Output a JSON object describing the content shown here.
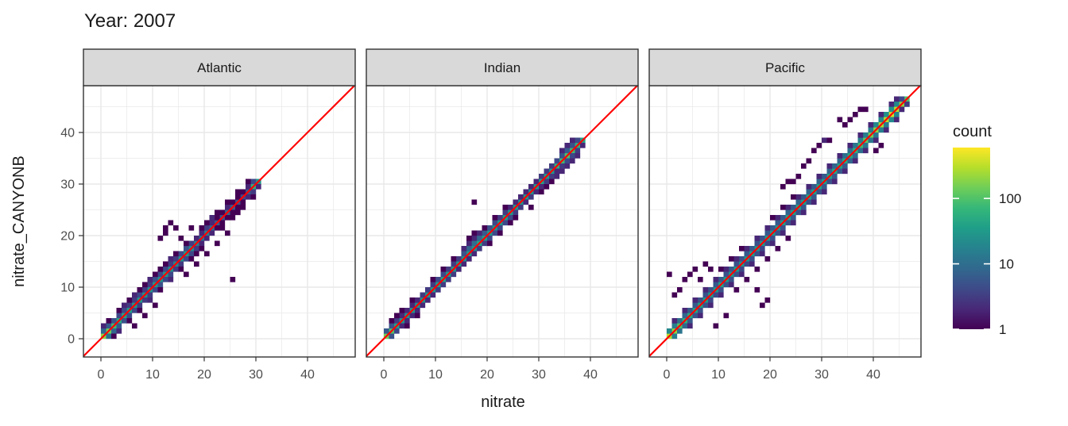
{
  "chart_data": {
    "type": "heatmap",
    "subtype": "faceted-2d-bin-scatter",
    "title": "Year: 2007",
    "xlabel": "nitrate",
    "ylabel": "nitrate_CANYONB",
    "x_ticks": [
      0,
      10,
      20,
      30,
      40
    ],
    "y_ticks": [
      0,
      10,
      20,
      30,
      40
    ],
    "x_minor": [
      5,
      15,
      25,
      35,
      45
    ],
    "y_minor": [
      5,
      15,
      25,
      35,
      45
    ],
    "axis_range": [
      -3.4,
      49.2
    ],
    "bin_size": 1,
    "grid": true,
    "identity_line": {
      "label": "y = x",
      "color": "#ff0000"
    },
    "legend": {
      "title": "count",
      "position": "right",
      "scale": "log10",
      "ticks": [
        100,
        10,
        1
      ],
      "domain_max": 600,
      "colors": [
        "#440154",
        "#482878",
        "#3e4a89",
        "#31688e",
        "#26828e",
        "#1f9e89",
        "#35b779",
        "#6ece58",
        "#b5de2b",
        "#fde725"
      ]
    },
    "style": {
      "strip_fill": "#d9d9d9",
      "strip_border": "#333333",
      "panel_fill": "#ffffff",
      "panel_border": "#333333",
      "grid_color": "#e8e8e8",
      "tick_color": "#333333",
      "tick_label_color": "#4d4d4d",
      "text_color": "#1a1a1a"
    },
    "facets": [
      {
        "label": "Atlantic",
        "core": [
          200,
          150,
          80,
          50,
          40,
          35,
          30,
          30,
          25,
          25,
          30,
          25,
          30,
          25,
          20,
          25,
          30,
          20,
          15,
          10,
          15,
          8,
          6,
          5,
          8,
          6,
          5,
          4,
          6,
          60,
          30
        ],
        "above": [
          8,
          6,
          5,
          4,
          4,
          3,
          3,
          4,
          3,
          3,
          5,
          4,
          4,
          3,
          3,
          4,
          5,
          3,
          2,
          2,
          3,
          2,
          1,
          1,
          2,
          1,
          1,
          1,
          2,
          4
        ],
        "below": [
          10,
          8,
          6,
          5,
          4,
          4,
          3,
          3,
          3,
          4,
          5,
          4,
          4,
          3,
          3,
          4,
          4,
          3,
          2,
          2,
          2,
          1,
          1,
          1,
          1,
          1,
          1,
          2,
          3,
          2
        ],
        "extra": [
          [
            2,
            0,
            1
          ],
          [
            3,
            1,
            2
          ],
          [
            0,
            2,
            2
          ],
          [
            1,
            3,
            1
          ],
          [
            3,
            5,
            1
          ],
          [
            4,
            6,
            2
          ],
          [
            5,
            7,
            1
          ],
          [
            6,
            8,
            2
          ],
          [
            7,
            9,
            1
          ],
          [
            8,
            10,
            1
          ],
          [
            9,
            11,
            2
          ],
          [
            10,
            12,
            1
          ],
          [
            11,
            13,
            1
          ],
          [
            12,
            14,
            1
          ],
          [
            13,
            15,
            2
          ],
          [
            14,
            16,
            1
          ],
          [
            16,
            18,
            1
          ],
          [
            18,
            16,
            1
          ],
          [
            5,
            3,
            1
          ],
          [
            7,
            5,
            1
          ],
          [
            9,
            7,
            2
          ],
          [
            11,
            9,
            1
          ],
          [
            13,
            11,
            2
          ],
          [
            15,
            13,
            1
          ],
          [
            17,
            15,
            1
          ],
          [
            19,
            17,
            1
          ],
          [
            12,
            20,
            1
          ],
          [
            13,
            22,
            1
          ],
          [
            14,
            21,
            1
          ],
          [
            12,
            21,
            1
          ],
          [
            11,
            19,
            1
          ],
          [
            25,
            11,
            1
          ],
          [
            20,
            22,
            1
          ],
          [
            22,
            24,
            1
          ],
          [
            24,
            26,
            1
          ],
          [
            26,
            28,
            1
          ],
          [
            23,
            21,
            1
          ],
          [
            25,
            23,
            1
          ],
          [
            27,
            25,
            1
          ],
          [
            28,
            30,
            1
          ],
          [
            26,
            24,
            1
          ],
          [
            29,
            27,
            1
          ],
          [
            17,
            21,
            1
          ],
          [
            15,
            19,
            1
          ],
          [
            8,
            4,
            1
          ],
          [
            10,
            6,
            1
          ],
          [
            6,
            2,
            1
          ],
          [
            21,
            23,
            2
          ],
          [
            19,
            21,
            1
          ],
          [
            16,
            12,
            1
          ],
          [
            18,
            14,
            1
          ],
          [
            20,
            16,
            1
          ],
          [
            22,
            18,
            1
          ],
          [
            24,
            20,
            1
          ]
        ]
      },
      {
        "label": "Indian",
        "core": [
          150,
          100,
          40,
          30,
          25,
          30,
          25,
          25,
          30,
          30,
          35,
          40,
          35,
          30,
          30,
          25,
          30,
          25,
          40,
          35,
          30,
          25,
          30,
          35,
          30,
          30,
          25,
          30,
          25,
          30,
          40,
          35,
          30,
          60,
          80,
          100,
          80,
          60,
          40
        ],
        "above": [
          6,
          5,
          3,
          2,
          2,
          2,
          2,
          3,
          3,
          3,
          4,
          4,
          3,
          3,
          3,
          5,
          8,
          10,
          8,
          6,
          5,
          4,
          3,
          3,
          2,
          2,
          2,
          2,
          2,
          2,
          3,
          3,
          3,
          4,
          5,
          6,
          5,
          4
        ],
        "below": [
          5,
          4,
          2,
          2,
          2,
          2,
          2,
          2,
          2,
          3,
          3,
          3,
          3,
          2,
          2,
          2,
          2,
          3,
          3,
          4,
          4,
          4,
          4,
          4,
          3,
          3,
          2,
          3,
          2,
          2,
          3,
          3,
          2,
          3,
          4,
          4,
          3,
          2
        ],
        "extra": [
          [
            17,
            26,
            1
          ],
          [
            24,
            22,
            1
          ],
          [
            28,
            25,
            1
          ],
          [
            15,
            17,
            2
          ],
          [
            16,
            18,
            2
          ],
          [
            17,
            19,
            2
          ],
          [
            18,
            20,
            2
          ],
          [
            19,
            21,
            1
          ],
          [
            16,
            19,
            1
          ],
          [
            17,
            20,
            1
          ],
          [
            3,
            5,
            1
          ],
          [
            2,
            4,
            1
          ],
          [
            5,
            7,
            1
          ],
          [
            4,
            2,
            1
          ],
          [
            6,
            4,
            1
          ],
          [
            1,
            3,
            1
          ],
          [
            9,
            11,
            1
          ],
          [
            11,
            13,
            1
          ],
          [
            13,
            15,
            1
          ],
          [
            21,
            23,
            1
          ],
          [
            23,
            25,
            1
          ],
          [
            31,
            29,
            1
          ],
          [
            32,
            30,
            1
          ],
          [
            33,
            31,
            2
          ],
          [
            34,
            32,
            2
          ],
          [
            35,
            33,
            2
          ],
          [
            36,
            34,
            2
          ],
          [
            37,
            35,
            2
          ],
          [
            30,
            28,
            1
          ],
          [
            25,
            23,
            1
          ],
          [
            22,
            20,
            1
          ],
          [
            20,
            18,
            1
          ],
          [
            36,
            38,
            2
          ],
          [
            35,
            37,
            2
          ],
          [
            34,
            36,
            2
          ]
        ]
      },
      {
        "label": "Pacific",
        "core": [
          300,
          200,
          100,
          60,
          50,
          40,
          40,
          35,
          30,
          30,
          40,
          35,
          30,
          35,
          30,
          30,
          35,
          30,
          30,
          35,
          30,
          30,
          35,
          40,
          35,
          40,
          35,
          40,
          35,
          40,
          35,
          40,
          45,
          40,
          50,
          45,
          60,
          80,
          120,
          150,
          200,
          250,
          300,
          400,
          300,
          200,
          100
        ],
        "above": [
          20,
          15,
          10,
          8,
          6,
          6,
          5,
          5,
          5,
          6,
          6,
          5,
          6,
          5,
          5,
          6,
          6,
          5,
          5,
          6,
          6,
          6,
          6,
          8,
          6,
          8,
          6,
          8,
          6,
          8,
          6,
          8,
          8,
          8,
          10,
          10,
          12,
          15,
          15,
          15,
          20,
          20,
          25,
          25,
          20,
          15
        ],
        "below": [
          15,
          12,
          8,
          6,
          5,
          5,
          5,
          4,
          4,
          5,
          5,
          5,
          5,
          4,
          4,
          5,
          5,
          4,
          4,
          5,
          5,
          5,
          5,
          6,
          5,
          6,
          5,
          6,
          5,
          6,
          5,
          6,
          6,
          6,
          8,
          8,
          10,
          12,
          12,
          12,
          15,
          15,
          20,
          20,
          15,
          12
        ],
        "extra": [
          [
            1,
            3,
            2
          ],
          [
            3,
            5,
            2
          ],
          [
            5,
            7,
            2
          ],
          [
            7,
            9,
            2
          ],
          [
            9,
            11,
            2
          ],
          [
            11,
            13,
            2
          ],
          [
            13,
            15,
            2
          ],
          [
            15,
            17,
            2
          ],
          [
            17,
            19,
            2
          ],
          [
            19,
            21,
            2
          ],
          [
            21,
            23,
            2
          ],
          [
            23,
            25,
            2
          ],
          [
            25,
            27,
            2
          ],
          [
            27,
            29,
            2
          ],
          [
            29,
            31,
            2
          ],
          [
            31,
            33,
            2
          ],
          [
            33,
            35,
            2
          ],
          [
            35,
            37,
            2
          ],
          [
            37,
            39,
            2
          ],
          [
            39,
            41,
            2
          ],
          [
            41,
            43,
            2
          ],
          [
            43,
            45,
            2
          ],
          [
            4,
            2,
            2
          ],
          [
            6,
            4,
            2
          ],
          [
            8,
            6,
            2
          ],
          [
            10,
            8,
            2
          ],
          [
            12,
            10,
            2
          ],
          [
            14,
            12,
            2
          ],
          [
            16,
            14,
            2
          ],
          [
            18,
            16,
            2
          ],
          [
            20,
            18,
            2
          ],
          [
            22,
            20,
            2
          ],
          [
            24,
            22,
            2
          ],
          [
            26,
            24,
            2
          ],
          [
            28,
            26,
            2
          ],
          [
            30,
            28,
            2
          ],
          [
            32,
            30,
            2
          ],
          [
            34,
            32,
            2
          ],
          [
            36,
            34,
            2
          ],
          [
            38,
            36,
            2
          ],
          [
            40,
            38,
            2
          ],
          [
            42,
            40,
            2
          ],
          [
            44,
            42,
            2
          ],
          [
            10,
            13,
            1
          ],
          [
            12,
            15,
            1
          ],
          [
            14,
            17,
            1
          ],
          [
            20,
            23,
            1
          ],
          [
            22,
            25,
            1
          ],
          [
            24,
            27,
            1
          ],
          [
            13,
            9,
            1
          ],
          [
            15,
            11,
            1
          ],
          [
            17,
            13,
            1
          ],
          [
            19,
            15,
            1
          ],
          [
            21,
            17,
            1
          ],
          [
            23,
            19,
            1
          ],
          [
            0,
            12,
            1
          ],
          [
            4,
            12,
            1
          ],
          [
            3,
            11,
            1
          ],
          [
            5,
            13,
            1
          ],
          [
            7,
            14,
            1
          ],
          [
            8,
            13,
            1
          ],
          [
            18,
            6,
            1
          ],
          [
            17,
            9,
            1
          ],
          [
            19,
            7,
            1
          ],
          [
            33,
            42,
            1
          ],
          [
            35,
            42,
            1
          ],
          [
            34,
            41,
            1
          ],
          [
            36,
            43,
            1
          ],
          [
            28,
            36,
            1
          ],
          [
            29,
            37,
            1
          ],
          [
            30,
            38,
            2
          ],
          [
            31,
            38,
            1
          ],
          [
            22,
            29,
            1
          ],
          [
            23,
            30,
            1
          ],
          [
            24,
            30,
            1
          ],
          [
            25,
            31,
            1
          ],
          [
            9,
            2,
            1
          ],
          [
            11,
            4,
            1
          ],
          [
            2,
            9,
            1
          ],
          [
            1,
            8,
            1
          ],
          [
            6,
            11,
            1
          ],
          [
            26,
            33,
            1
          ],
          [
            27,
            34,
            1
          ],
          [
            38,
            44,
            1
          ],
          [
            37,
            44,
            1
          ],
          [
            40,
            36,
            1
          ],
          [
            41,
            37,
            1
          ],
          [
            44,
            46,
            2
          ],
          [
            45,
            44,
            2
          ],
          [
            46,
            45,
            3
          ],
          [
            45,
            46,
            4
          ]
        ]
      }
    ]
  }
}
